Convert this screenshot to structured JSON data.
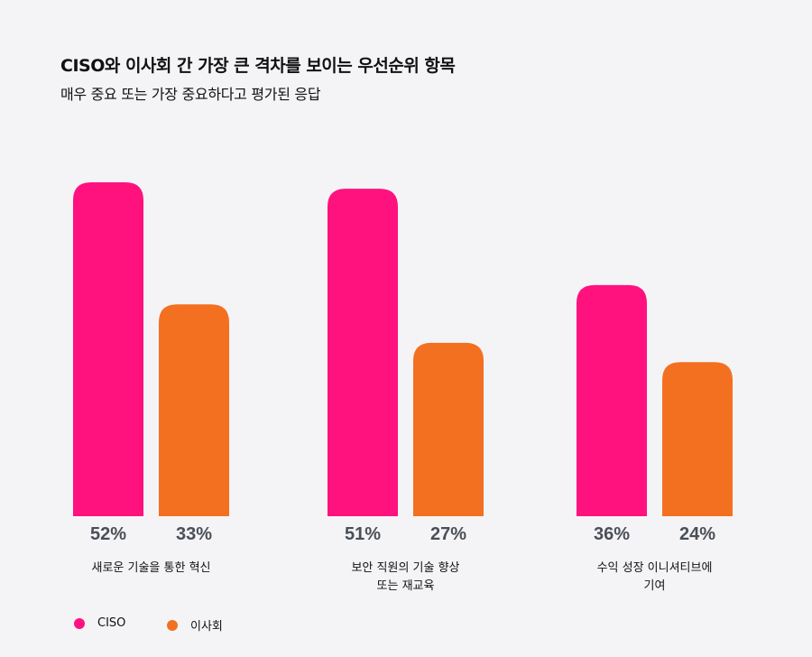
{
  "header": {
    "title": "CISO와 이사회 간 가장 큰 격차를 보이는 우선순위 항목",
    "subtitle": "매우 중요 또는 가장 중요하다고 평가된 응답"
  },
  "chart_data": {
    "type": "bar",
    "title": "CISO와 이사회 간 가장 큰 격차를 보이는 우선순위 항목",
    "subtitle": "매우 중요 또는 가장 중요하다고 평가된 응답",
    "categories": [
      [
        "새로운 기술을 통한 혁신"
      ],
      [
        "보안 직원의 기술 향상",
        "또는 재교육"
      ],
      [
        "수익 성장 이니셔티브에",
        "기여"
      ]
    ],
    "series": [
      {
        "name": "CISO",
        "color": "#ff127e",
        "values": [
          52,
          51,
          36
        ],
        "labels": [
          "52%",
          "51%",
          "36%"
        ]
      },
      {
        "name": "이사회",
        "color": "#f37021",
        "values": [
          33,
          27,
          24
        ],
        "labels": [
          "33%",
          "27%",
          "24%"
        ]
      }
    ],
    "unit": "%",
    "ylim": [
      0,
      52
    ],
    "grid": false,
    "legend": "bottom-left"
  }
}
